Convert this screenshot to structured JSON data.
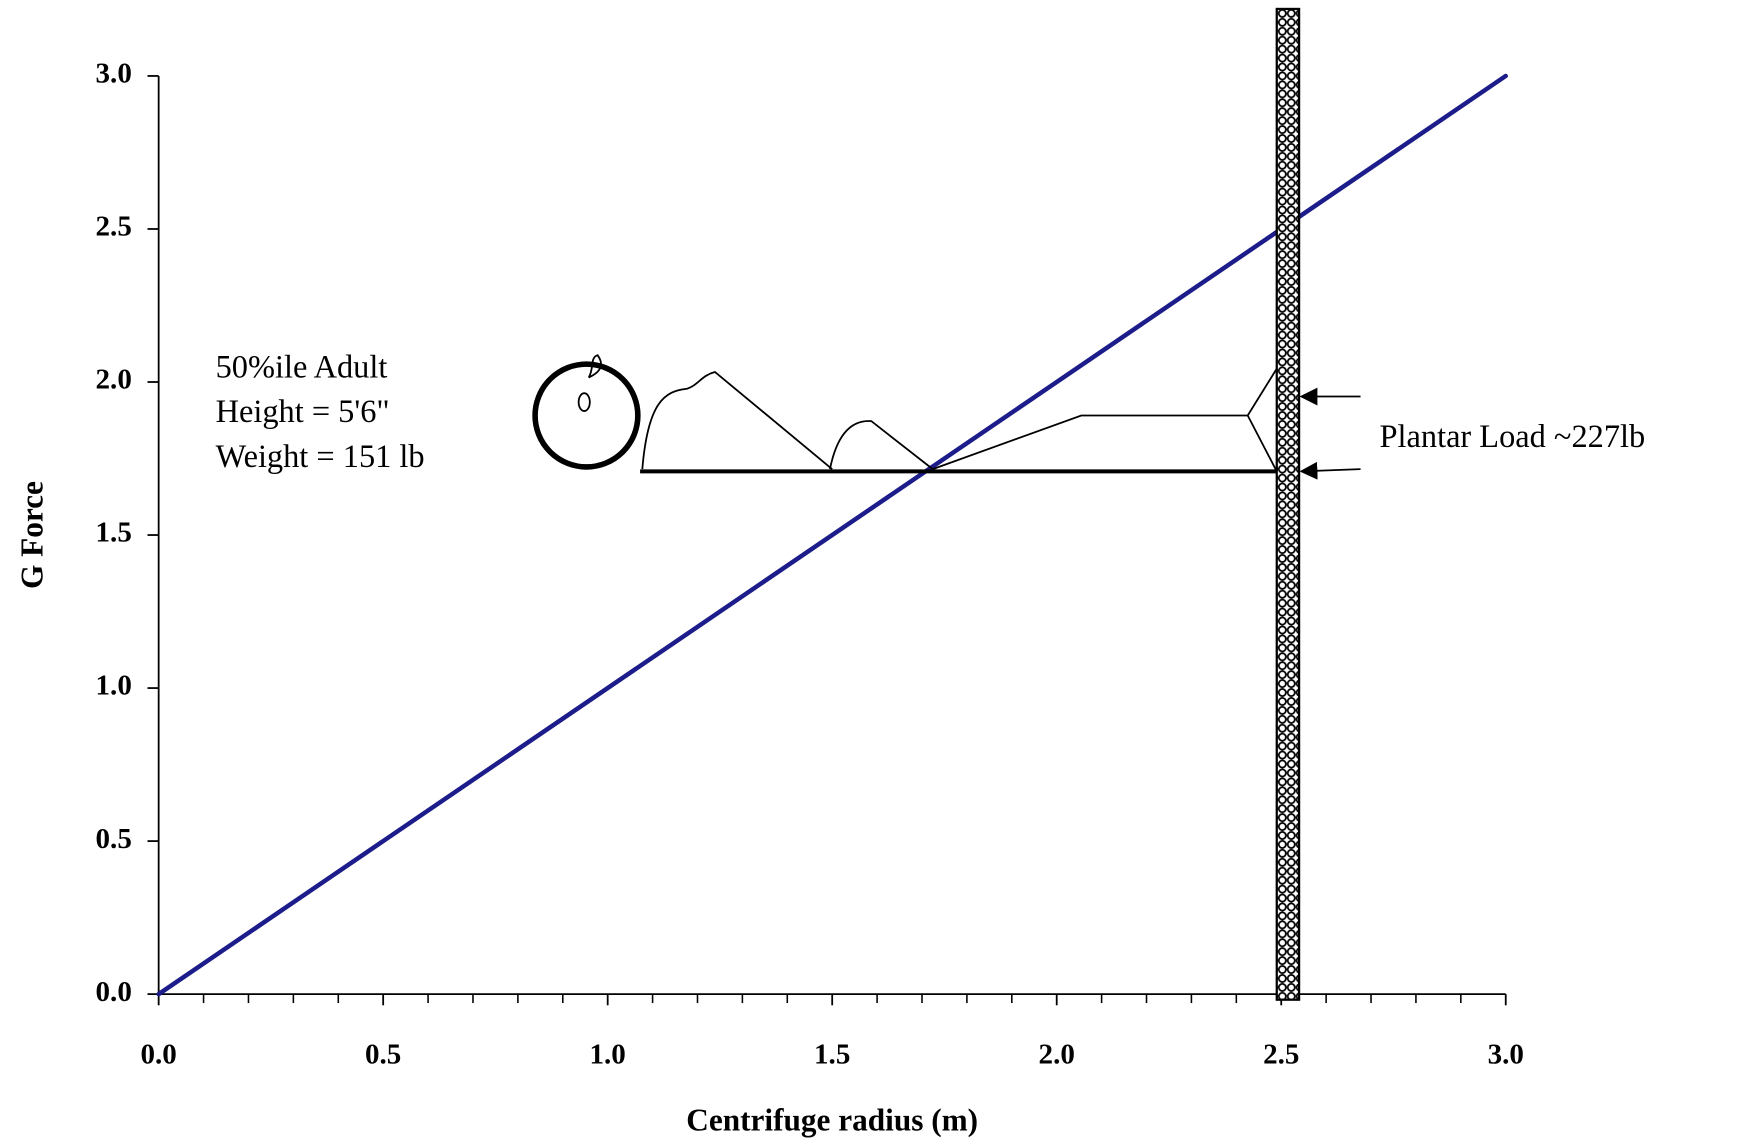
{
  "chart_data": {
    "type": "line",
    "x_label": "Centrifuge radius (m)",
    "y_label": "G Force",
    "x": [
      0,
      3.0
    ],
    "series": [
      {
        "color": "#1c1c8a",
        "values": [
          0,
          3.0
        ]
      }
    ],
    "xlim": [
      0,
      3.0
    ],
    "ylim": [
      0,
      3.0
    ],
    "xticks": [
      {
        "value": 0,
        "label": "0.0"
      },
      0.5,
      {
        "value": 1,
        "label": "1.0"
      },
      1.5,
      {
        "value": 2,
        "label": "2.0"
      },
      2.5,
      {
        "value": 3,
        "label": "3.0"
      }
    ],
    "xminorticks": [
      0.1,
      0.2,
      0.3,
      0.4,
      0.6,
      0.7,
      0.8,
      0.9,
      1.1,
      1.2,
      1.3,
      1.4,
      1.6,
      1.7,
      1.8,
      1.9,
      2.1,
      2.2,
      2.3,
      2.4,
      2.6,
      2.7,
      2.8,
      2.9
    ],
    "yticks": [
      {
        "value": 0,
        "label": "0.0"
      },
      0.5,
      {
        "value": 1,
        "label": "1.0"
      },
      1.5,
      {
        "value": 2,
        "label": "2.0"
      },
      2.5,
      {
        "value": 3,
        "label": "3.0"
      }
    ],
    "annotations": [
      "50%ile Adult",
      "Height = 5'6\"",
      "Weight = 151 lb",
      "Plantar Load ~227lb"
    ]
  }
}
